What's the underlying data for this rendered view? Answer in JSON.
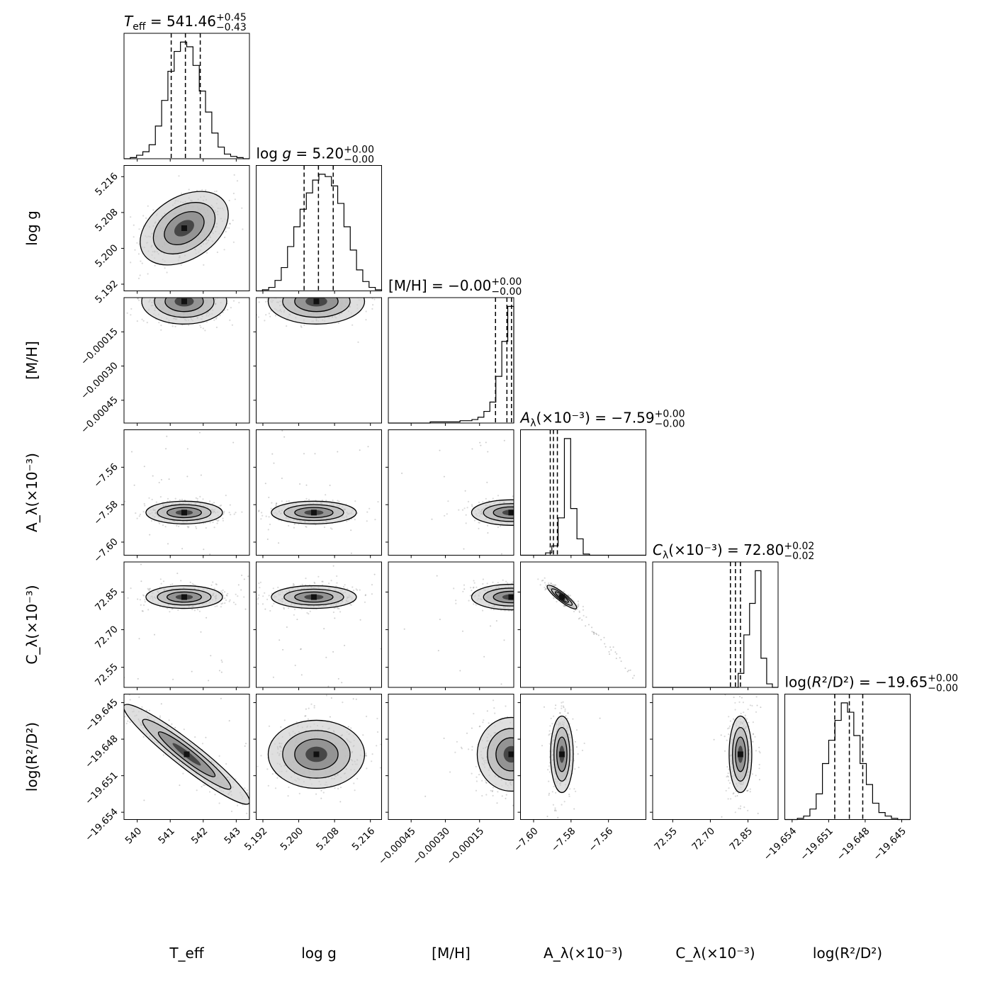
{
  "chart_data": {
    "type": "corner",
    "parameters": [
      {
        "key": "teff",
        "axis_label": "T_eff",
        "range": [
          539.6,
          543.4
        ],
        "ticks": [
          540,
          541,
          542,
          543
        ],
        "tick_labels": [
          "540",
          "541",
          "542",
          "543"
        ],
        "quantiles": [
          541.03,
          541.46,
          541.91
        ],
        "title": {
          "pre": "",
          "sym": "T",
          "sub": "eff",
          "post": " = 541.46",
          "sup_up": "+0.45",
          "sup_down": "−0.43"
        }
      },
      {
        "key": "logg",
        "axis_label": "log g",
        "range": [
          5.1905,
          5.2185
        ],
        "ticks": [
          5.192,
          5.2,
          5.208,
          5.216
        ],
        "tick_labels": [
          "5.192",
          "5.200",
          "5.208",
          "5.216"
        ],
        "quantiles": [
          5.2012,
          5.2044,
          5.2077
        ],
        "title": {
          "pre": "log ",
          "sym": "g",
          "sub": "",
          "post": " = 5.20",
          "sup_up": "+0.00",
          "sup_down": "−0.00"
        }
      },
      {
        "key": "mh",
        "axis_label": "[M/H]",
        "range": [
          -0.00055,
          0.0
        ],
        "ticks": [
          -0.00045,
          -0.0003,
          -0.00015
        ],
        "tick_labels": [
          "−0.00045",
          "−0.00030",
          "−0.00015"
        ],
        "quantiles": [
          -8e-05,
          -3e-05,
          -1e-05
        ],
        "title": {
          "pre": "[M/H]",
          "sym": "",
          "sub": "",
          "post": " = −0.00",
          "sup_up": "+0.00",
          "sup_down": "−0.00"
        }
      },
      {
        "key": "alambda",
        "axis_label": "A_λ(×10⁻³)",
        "range": [
          -7.607,
          -7.54
        ],
        "ticks": [
          -7.6,
          -7.58,
          -7.56
        ],
        "tick_labels": [
          "−7.60",
          "−7.58",
          "−7.56"
        ],
        "quantiles": [
          -7.5911,
          -7.5894,
          -7.5873
        ],
        "title": {
          "pre": "",
          "sym": "A",
          "sub": "λ",
          "post": "(×10⁻³) = −7.59",
          "sup_up": "+0.00",
          "sup_down": "−0.00"
        }
      },
      {
        "key": "clambda",
        "axis_label": "C_λ(×10⁻³)",
        "range": [
          72.47,
          72.97
        ],
        "ticks": [
          72.55,
          72.7,
          72.85
        ],
        "tick_labels": [
          "72.55",
          "72.70",
          "72.85"
        ],
        "quantiles": [
          72.78,
          72.8,
          72.82
        ],
        "title": {
          "pre": "",
          "sym": "C",
          "sub": "λ",
          "post": "(×10⁻³) = 72.80",
          "sup_up": "+0.02",
          "sup_down": "−0.02"
        }
      },
      {
        "key": "logr2d2",
        "axis_label": "log(R²/D²)",
        "range": [
          -19.6546,
          -19.6443
        ],
        "ticks": [
          -19.654,
          -19.651,
          -19.648,
          -19.645
        ],
        "tick_labels": [
          "−19.654",
          "−19.651",
          "−19.648",
          "−19.645"
        ],
        "quantiles": [
          -19.6505,
          -19.6493,
          -19.6482
        ],
        "title": {
          "pre": "log(",
          "sym": "R",
          "sub": "",
          "post": "²/D²) = −19.65",
          "sup_up": "+0.00",
          "sup_down": "−0.00"
        }
      }
    ],
    "histograms": {
      "teff": [
        0,
        1,
        3,
        6,
        12,
        28,
        50,
        75,
        92,
        100,
        96,
        80,
        58,
        40,
        22,
        10,
        4,
        2,
        1,
        0
      ],
      "logg": [
        0,
        1,
        3,
        9,
        20,
        38,
        55,
        70,
        84,
        95,
        100,
        98,
        90,
        75,
        55,
        35,
        18,
        8,
        3,
        1
      ],
      "mh": [
        0,
        0,
        0,
        0,
        0,
        0,
        0,
        1,
        1,
        1,
        1,
        1,
        2,
        2,
        3,
        5,
        10,
        18,
        40,
        70,
        100
      ],
      "alambda": [
        0,
        0,
        0,
        0,
        2,
        8,
        32,
        100,
        40,
        14,
        1,
        0,
        0,
        0,
        0,
        0,
        0,
        0,
        0,
        0
      ],
      "clambda": [
        0,
        0,
        0,
        0,
        0,
        0,
        0,
        0,
        0,
        0,
        0,
        0,
        0,
        0,
        0,
        12,
        45,
        72,
        100,
        25,
        3,
        0
      ],
      "logr2d2": [
        0,
        0,
        1,
        3,
        9,
        22,
        48,
        68,
        85,
        100,
        92,
        72,
        48,
        30,
        14,
        6,
        3,
        1,
        0,
        0
      ]
    },
    "histogram_ylabel": "",
    "colors": {
      "ink": "#000000",
      "density_dark": "#1a1a1a",
      "density_light": "#d9d9d9"
    }
  }
}
